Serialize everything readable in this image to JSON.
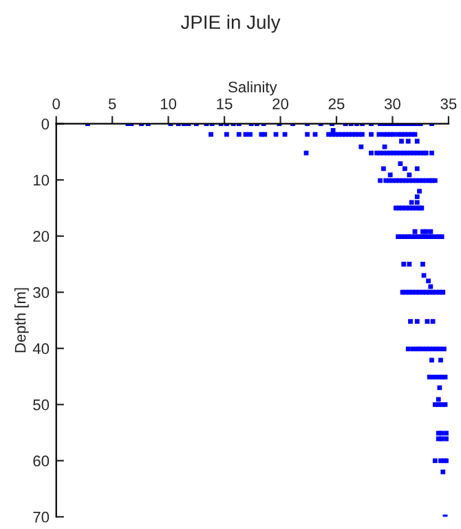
{
  "chart_data": {
    "type": "scatter",
    "title": "JPIE in July",
    "xlabel": "Salinity",
    "ylabel": "Depth [m]",
    "xlim": [
      0,
      35
    ],
    "xticks": [
      0,
      5,
      10,
      15,
      20,
      25,
      30,
      35
    ],
    "ylim": [
      70,
      0
    ],
    "yticks": [
      0,
      10,
      20,
      30,
      40,
      50,
      60,
      70
    ],
    "grid": false,
    "legend": false,
    "marker": "square",
    "series": [
      {
        "color": "#0000ff",
        "x": [
          2.8,
          6.4,
          6.7,
          7.6,
          8.2,
          10.2,
          10.9,
          11.4,
          11.8,
          12.5,
          13.4,
          13.9,
          14.7,
          15.2,
          15.8,
          16.3,
          17.4,
          17.9,
          18.5,
          19.9,
          21.1,
          22.4,
          23.6,
          24.6,
          25.8,
          26.3,
          26.8,
          27.3,
          28.1,
          28.9,
          29.2,
          29.5,
          29.8,
          30.1,
          30.4,
          30.7,
          31.0,
          31.3,
          31.6,
          31.9,
          32.2,
          32.5,
          33.5,
          24.7,
          13.8,
          15.2,
          16.3,
          16.9,
          17.3,
          18.3,
          18.6,
          19.6,
          20.4,
          22.4,
          23.1,
          24.3,
          24.6,
          24.9,
          25.2,
          25.5,
          25.8,
          26.1,
          26.4,
          26.7,
          27.0,
          27.3,
          28.1,
          28.8,
          29.2,
          29.5,
          29.8,
          30.1,
          30.5,
          30.8,
          31.1,
          31.4,
          31.7,
          32.0,
          30.8,
          31.4,
          32.2,
          27.2,
          29.3,
          22.3,
          28.1,
          28.6,
          28.9,
          29.2,
          29.5,
          29.8,
          30.1,
          30.4,
          30.7,
          31.0,
          31.3,
          31.6,
          31.9,
          32.2,
          32.5,
          32.8,
          33.0,
          33.5,
          30.7,
          29.2,
          31.1,
          32.2,
          29.8,
          31.5,
          28.9,
          29.4,
          29.7,
          30.0,
          30.3,
          30.6,
          30.9,
          31.2,
          31.5,
          31.8,
          32.1,
          32.4,
          32.7,
          33.0,
          33.3,
          33.5,
          33.8,
          32.4,
          32.2,
          31.7,
          32.2,
          30.3,
          30.6,
          30.9,
          31.2,
          31.5,
          31.8,
          32.1,
          32.4,
          32.6,
          32.0,
          32.7,
          33.0,
          33.4,
          30.5,
          30.8,
          31.1,
          31.4,
          31.7,
          32.0,
          32.3,
          32.6,
          32.9,
          33.2,
          33.5,
          33.8,
          34.1,
          34.4,
          31.0,
          31.5,
          32.7,
          32.8,
          33.2,
          33.4,
          30.9,
          31.2,
          31.5,
          31.8,
          32.1,
          32.4,
          32.7,
          33.0,
          33.3,
          33.6,
          33.9,
          34.2,
          34.5,
          31.6,
          32.2,
          33.1,
          33.6,
          31.4,
          31.8,
          32.2,
          32.4,
          32.7,
          33.0,
          33.3,
          33.6,
          33.9,
          34.2,
          34.6,
          33.5,
          34.3,
          33.3,
          33.6,
          33.9,
          34.2,
          34.5,
          34.7,
          34.2,
          34.1,
          33.8,
          34.1,
          34.4,
          34.7,
          34.1,
          34.4,
          34.8,
          34.1,
          34.4,
          34.8,
          33.8,
          34.3,
          34.6,
          34.9,
          34.5,
          34.7
        ],
        "values": [
          0,
          0,
          0,
          0,
          0,
          0,
          0,
          0,
          0,
          0,
          0,
          0,
          0,
          0,
          0,
          0,
          0,
          0,
          0,
          0,
          0,
          0,
          0,
          0,
          0,
          0,
          0,
          0,
          0,
          0,
          0,
          0,
          0,
          0,
          0,
          0,
          0,
          0,
          0,
          0,
          0,
          0,
          0,
          1.2,
          1.9,
          1.9,
          1.9,
          1.9,
          1.9,
          1.9,
          1.9,
          1.9,
          1.9,
          1.9,
          1.9,
          1.9,
          1.9,
          1.9,
          1.9,
          1.9,
          1.9,
          1.9,
          1.9,
          1.9,
          1.9,
          1.9,
          1.9,
          1.9,
          1.9,
          1.9,
          1.9,
          1.9,
          1.9,
          1.9,
          1.9,
          1.9,
          1.9,
          1.9,
          3.1,
          3.1,
          3.1,
          4.1,
          4.1,
          5.2,
          5.2,
          5.2,
          5.2,
          5.2,
          5.2,
          5.2,
          5.2,
          5.2,
          5.2,
          5.2,
          5.2,
          5.2,
          5.2,
          5.2,
          5.2,
          5.2,
          5.2,
          5.2,
          7.1,
          8,
          8,
          8,
          9.1,
          9.1,
          10.1,
          10.1,
          10.1,
          10.1,
          10.1,
          10.1,
          10.1,
          10.1,
          10.1,
          10.1,
          10.1,
          10.1,
          10.1,
          10.1,
          10.1,
          10.1,
          10.1,
          12,
          13,
          14,
          14,
          15,
          15,
          15,
          15,
          15,
          15,
          15,
          15,
          15,
          19.2,
          19.2,
          19.2,
          19.2,
          20.1,
          20.1,
          20.1,
          20.1,
          20.1,
          20.1,
          20.1,
          20.1,
          20.1,
          20.1,
          20.1,
          20.1,
          20.1,
          20.1,
          25,
          25,
          25,
          27,
          28,
          29,
          30,
          30,
          30,
          30,
          30,
          30,
          30,
          30,
          30,
          30,
          30,
          30,
          30,
          35.2,
          35.2,
          35.2,
          35.2,
          40.1,
          40.1,
          40.1,
          40.1,
          40.1,
          40.1,
          40.1,
          40.1,
          40.1,
          40.1,
          40.1,
          42.1,
          42.1,
          45.1,
          45.1,
          45.1,
          45.1,
          45.1,
          45.1,
          47,
          49.1,
          50,
          50,
          50,
          50,
          55.1,
          55.1,
          55.1,
          56.1,
          56.1,
          56.1,
          60,
          60,
          60,
          60,
          62,
          70
        ]
      }
    ]
  }
}
